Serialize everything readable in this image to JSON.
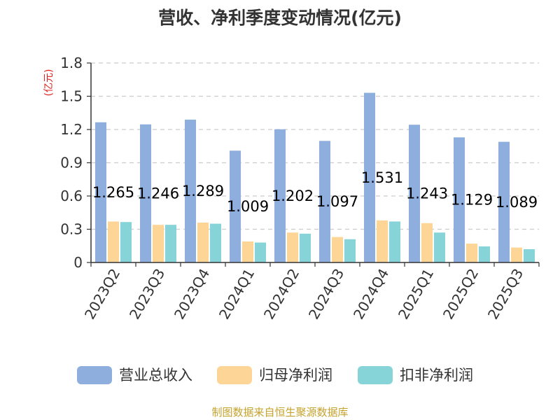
{
  "title": "营收、净利季度变动情况(亿元)",
  "source": "制图数据来自恒生聚源数据库",
  "chart_data": {
    "type": "bar",
    "unit_label": "(亿元)",
    "categories": [
      "2023Q2",
      "2023Q3",
      "2023Q4",
      "2024Q1",
      "2024Q2",
      "2024Q3",
      "2024Q4",
      "2025Q1",
      "2025Q2",
      "2025Q3"
    ],
    "yticks": [
      "0",
      "0.3",
      "0.6",
      "0.9",
      "1.2",
      "1.5",
      "1.8"
    ],
    "ylim": [
      0,
      1.8
    ],
    "grid": true,
    "legend_position": "bottom",
    "series": [
      {
        "name": "营业总收入",
        "color": "#8eaedd",
        "values": [
          1.265,
          1.246,
          1.289,
          1.009,
          1.202,
          1.097,
          1.531,
          1.243,
          1.129,
          1.089
        ],
        "labels": [
          "1.265",
          "1.246",
          "1.289",
          "1.009",
          "1.202",
          "1.097",
          "1.531",
          "1.243",
          "1.129",
          "1.089"
        ]
      },
      {
        "name": "归母净利润",
        "color": "#fdd596",
        "values": [
          0.37,
          0.34,
          0.36,
          0.19,
          0.27,
          0.23,
          0.38,
          0.355,
          0.17,
          0.135
        ]
      },
      {
        "name": "扣非净利润",
        "color": "#86d4d8",
        "values": [
          0.365,
          0.34,
          0.35,
          0.18,
          0.26,
          0.21,
          0.37,
          0.27,
          0.145,
          0.12
        ]
      }
    ]
  }
}
